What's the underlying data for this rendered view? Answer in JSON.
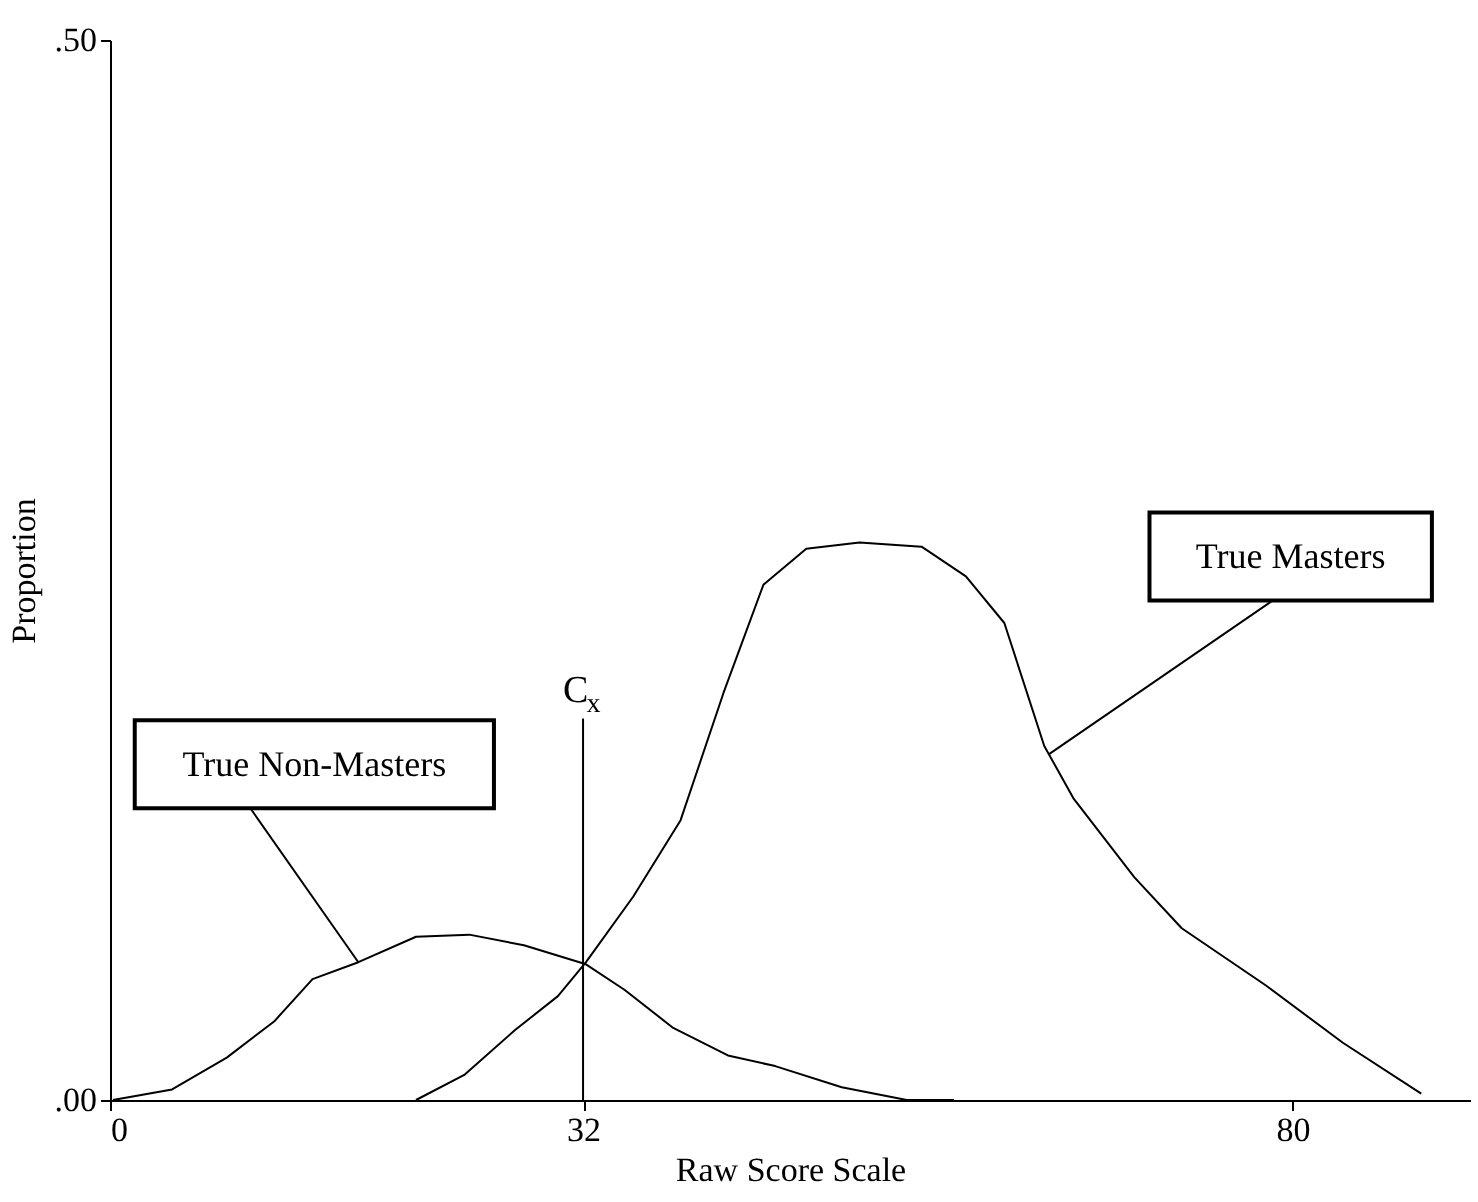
{
  "chart_data": {
    "type": "line",
    "xlabel": "Raw Score Scale",
    "ylabel": "Proportion",
    "xlim": [
      0,
      92
    ],
    "xticks": [
      0,
      32,
      80
    ],
    "ylim": [
      0,
      0.5
    ],
    "yticks": [
      {
        "value": 0,
        "label": ".00"
      },
      {
        "value": 0.5,
        "label": ".50"
      }
    ],
    "grid": false,
    "legend": false,
    "marker": "none",
    "line_style": "solid",
    "series": [
      {
        "color": "#000000",
        "x": [
          0.2,
          4.2,
          7.9,
          11.1,
          13.7,
          16.8,
          20.7,
          24.3,
          28.0,
          32.2,
          34.8,
          38.1,
          41.8,
          45.0,
          49.5,
          53.9,
          57.1
        ],
        "values": [
          0,
          0.005,
          0.02,
          0.037,
          0.057,
          0.065,
          0.077,
          0.078,
          0.073,
          0.064,
          0.052,
          0.034,
          0.021,
          0.016,
          0.006,
          0,
          0
        ]
      },
      {
        "color": "#000000",
        "x": [
          20.7,
          24.0,
          27.4,
          30.3,
          32.2,
          35.4,
          38.6,
          41.5,
          44.2,
          47.1,
          50.7,
          54.9,
          57.9,
          60.5,
          63.2,
          65.2,
          69.3,
          72.5,
          78.2,
          83.4,
          88.7
        ],
        "values": [
          0,
          0.012,
          0.033,
          0.049,
          0.065,
          0.096,
          0.132,
          0.192,
          0.243,
          0.26,
          0.263,
          0.261,
          0.247,
          0.225,
          0.167,
          0.142,
          0.105,
          0.081,
          0.054,
          0.027,
          0.003
        ]
      }
    ],
    "ref_lines": [
      {
        "axis": "x",
        "value": 32,
        "label": "C$_{x}$",
        "color": "#000000"
      }
    ],
    "annotations": [
      {
        "text": "True Non-Masters",
        "x": 16.8,
        "y": 0.065
      },
      {
        "text": "True Masters",
        "x": 63.5,
        "y": 0.163
      }
    ]
  }
}
